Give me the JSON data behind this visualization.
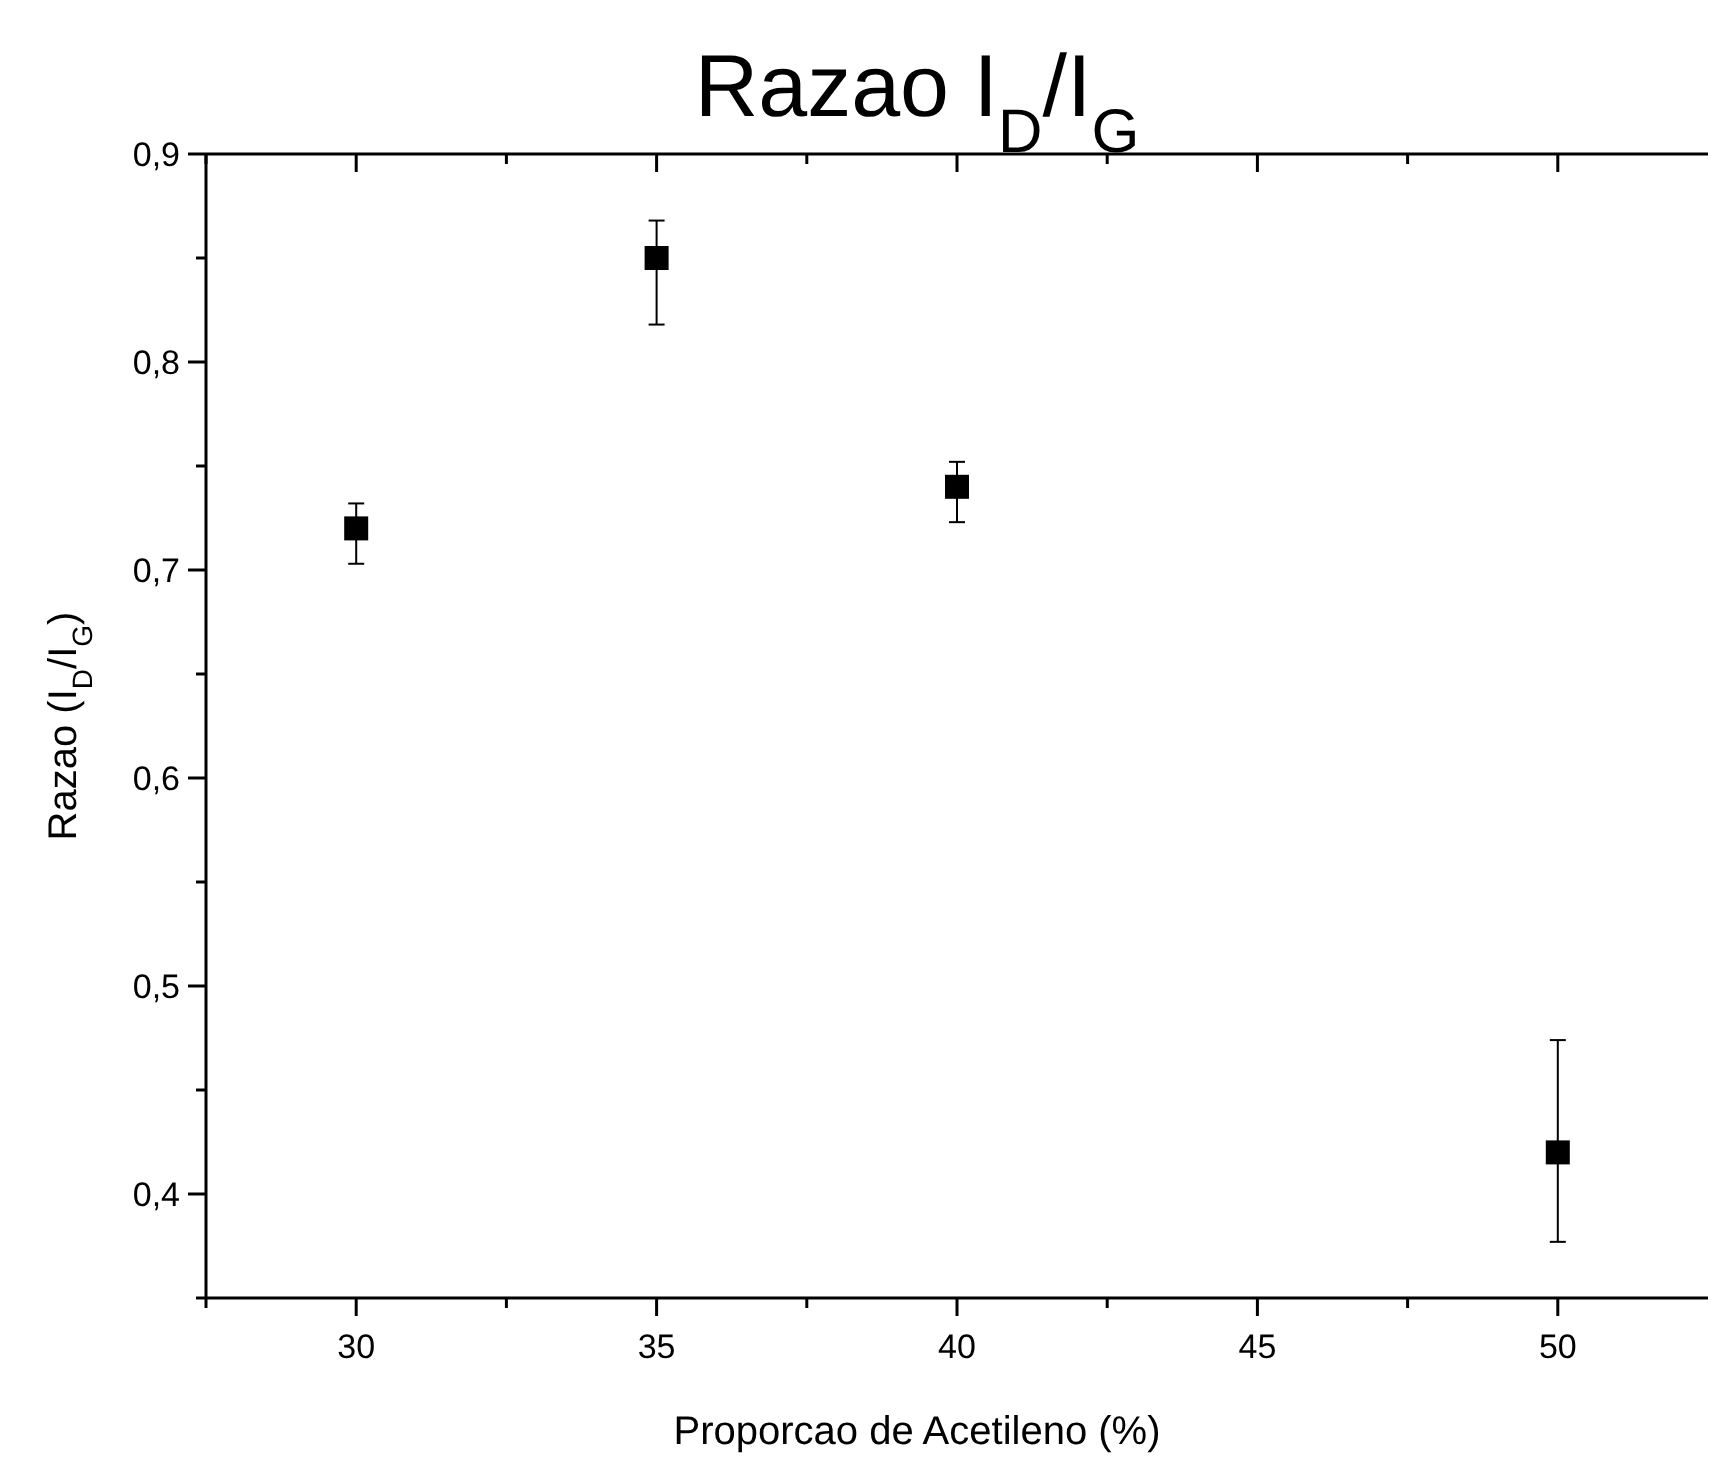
{
  "chart_data": {
    "type": "scatter",
    "title": "Razao I$_{D}$/I$_{G}$",
    "xlabel": "Proporcao de Acetileno (%)",
    "ylabel": "Razao (I$_{D}$/I$_{G}$)",
    "x": [
      30,
      35,
      40,
      50
    ],
    "values": [
      0.72,
      0.85,
      0.74,
      0.42
    ],
    "errors": [
      [
        0.703,
        0.732
      ],
      [
        0.818,
        0.868
      ],
      [
        0.723,
        0.752
      ],
      [
        0.377,
        0.474
      ]
    ],
    "color": "#000000",
    "marker": "square",
    "grid": false,
    "xlim": [
      27.5,
      52.5
    ],
    "xticks": [
      {
        "value": 27.5,
        "label": null
      },
      30,
      {
        "value": 32.5,
        "label": null
      },
      35,
      {
        "value": 37.5,
        "label": null
      },
      40,
      {
        "value": 42.5,
        "label": null
      },
      45,
      {
        "value": 47.5,
        "label": null
      },
      50
    ],
    "ylim": [
      0.35,
      0.9
    ],
    "yticks": [
      {
        "value": 0.35,
        "label": null
      },
      {
        "value": 0.4,
        "label": "0,4"
      },
      {
        "value": 0.45,
        "label": null
      },
      {
        "value": 0.5,
        "label": "0,5"
      },
      {
        "value": 0.55,
        "label": null
      },
      {
        "value": 0.6,
        "label": "0,6"
      },
      {
        "value": 0.65,
        "label": null
      },
      {
        "value": 0.7,
        "label": "0,7"
      },
      {
        "value": 0.75,
        "label": null
      },
      {
        "value": 0.8,
        "label": "0,8"
      },
      {
        "value": 0.85,
        "label": null
      },
      {
        "value": 0.9,
        "label": "0,9"
      }
    ]
  }
}
